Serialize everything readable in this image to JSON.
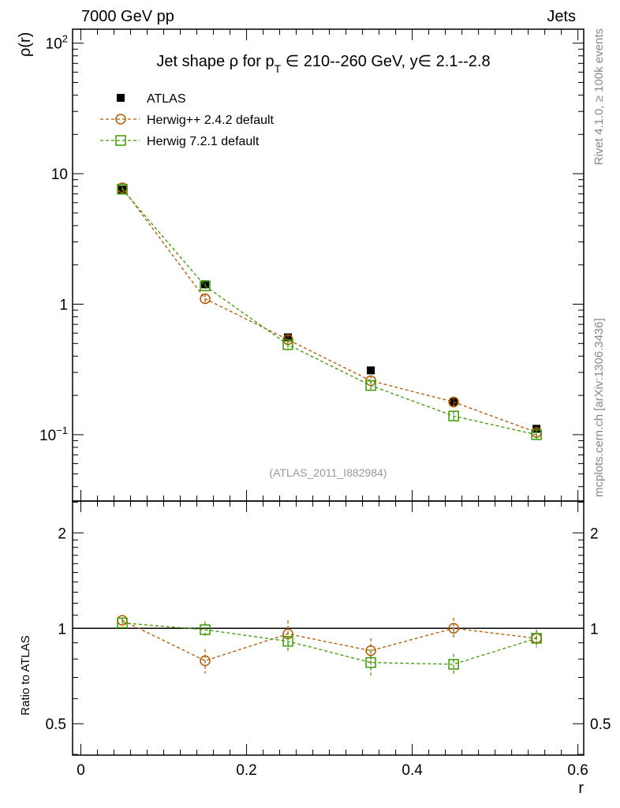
{
  "header": {
    "left": "7000 GeV pp",
    "right": "Jets"
  },
  "side": {
    "top": "Rivet 4.1.0, ≥ 100k events",
    "bottom": "mcplots.cern.ch [arXiv:1306.3436]"
  },
  "chart_data": [
    {
      "type": "line",
      "title": "Jet shape ρ for p_T ∈ 210--260 GeV, y∈ 2.1--2.8",
      "title_parts": {
        "pre": "Jet shape ρ for p",
        "sub": "T",
        "post": " ∈ 210--260 GeV, y∈ 2.1--2.8"
      },
      "ylabel": "ρ(r)",
      "yscale": "log",
      "ylim": [
        0.031,
        128
      ],
      "xlim": [
        -0.01,
        0.607
      ],
      "ytick_labels": [
        {
          "v": 100,
          "t": "10",
          "sup": "2"
        },
        {
          "v": 10,
          "t": "10",
          "sup": ""
        },
        {
          "v": 1,
          "t": "1",
          "sup": ""
        },
        {
          "v": 0.1,
          "t": "10",
          "sup": "−1"
        }
      ],
      "watermark": "(ATLAS_2011_I882984)",
      "legend": "top-left",
      "x": [
        0.05,
        0.15,
        0.25,
        0.35,
        0.45,
        0.55
      ],
      "series": [
        {
          "name": "ATLAS",
          "color": "#000000",
          "marker": "square-filled",
          "values": [
            7.55,
            1.42,
            0.557,
            0.311,
            0.178,
            0.111
          ],
          "err": [
            0.3,
            0.06,
            0.03,
            0.015,
            0.01,
            0.006
          ]
        },
        {
          "name": "Herwig++ 2.4.2 default",
          "color": "#b35900",
          "marker": "circle",
          "values": [
            7.8,
            1.1,
            0.535,
            0.259,
            0.178,
            0.104
          ],
          "err": [
            0.2,
            0.1,
            0.05,
            0.025,
            0.015,
            0.008
          ]
        },
        {
          "name": "Herwig 7.2.1 default",
          "color": "#3a9a00",
          "marker": "square",
          "values": [
            7.6,
            1.38,
            0.49,
            0.238,
            0.139,
            0.1
          ],
          "err": [
            0.2,
            0.08,
            0.05,
            0.02,
            0.012,
            0.008
          ]
        }
      ]
    },
    {
      "type": "line",
      "ylabel": "Ratio to ATLAS",
      "xlabel": "r",
      "yscale": "log",
      "ylim": [
        0.398,
        2.52
      ],
      "xlim": [
        -0.01,
        0.607
      ],
      "ytick_labels": [
        {
          "v": 2,
          "t": "2"
        },
        {
          "v": 1,
          "t": "1"
        },
        {
          "v": 0.5,
          "t": "0.5"
        }
      ],
      "xtick_labels": [
        {
          "v": 0,
          "t": "0"
        },
        {
          "v": 0.2,
          "t": "0.2"
        },
        {
          "v": 0.4,
          "t": "0.4"
        },
        {
          "v": 0.6,
          "t": "0.6"
        }
      ],
      "x": [
        0.05,
        0.15,
        0.25,
        0.35,
        0.45,
        0.55
      ],
      "series": [
        {
          "name": "Herwig++ 2.4.2 default",
          "color": "#b35900",
          "marker": "circle",
          "values": [
            1.06,
            0.79,
            0.96,
            0.85,
            1.0,
            0.93
          ],
          "err": [
            0.02,
            0.07,
            0.1,
            0.08,
            0.08,
            0.05
          ]
        },
        {
          "name": "Herwig 7.2.1 default",
          "color": "#3a9a00",
          "marker": "square",
          "values": [
            1.04,
            0.99,
            0.91,
            0.78,
            0.77,
            0.93
          ],
          "err": [
            0.02,
            0.06,
            0.07,
            0.07,
            0.06,
            0.06
          ]
        }
      ]
    }
  ]
}
